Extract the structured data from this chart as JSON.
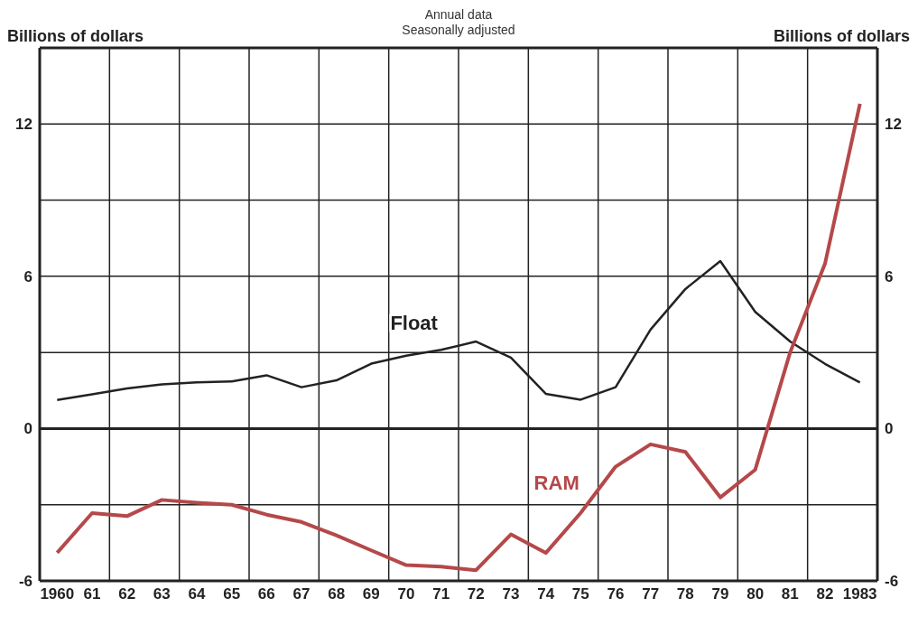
{
  "chart_data": {
    "type": "line",
    "annotations": [
      "Annual data",
      "Seasonally adjusted"
    ],
    "ylabel": "Billions of dollars",
    "y2label": "Billions of dollars",
    "x": [
      1960,
      1961,
      1962,
      1963,
      1964,
      1965,
      1966,
      1967,
      1968,
      1969,
      1970,
      1971,
      1972,
      1973,
      1974,
      1975,
      1976,
      1977,
      1978,
      1979,
      1980,
      1981,
      1982,
      1983
    ],
    "series": [
      {
        "name": "Float",
        "color": "#222222",
        "values": [
          1.13,
          1.35,
          1.58,
          1.74,
          1.82,
          1.86,
          2.1,
          1.63,
          1.9,
          2.56,
          2.87,
          3.1,
          3.43,
          2.8,
          1.37,
          1.14,
          1.63,
          3.9,
          5.5,
          6.6,
          4.6,
          3.43,
          2.55,
          1.82
        ]
      },
      {
        "name": "RAM",
        "color": "#b5484a",
        "values": [
          -4.89,
          -3.33,
          -3.45,
          -2.81,
          -2.92,
          -3.0,
          -3.39,
          -3.68,
          -4.21,
          -4.8,
          -5.38,
          -5.44,
          -5.58,
          -4.17,
          -4.9,
          -3.32,
          -1.5,
          -0.62,
          -0.92,
          -2.71,
          -1.62,
          3.0,
          6.5,
          12.8
        ]
      }
    ],
    "xlim": [
      1959.5,
      1983.5
    ],
    "xticks": [
      {
        "value": 1960,
        "label": "1960"
      },
      {
        "value": 1961,
        "label": "61"
      },
      {
        "value": 1961.5,
        "label": null
      },
      {
        "value": 1962,
        "label": "62"
      },
      {
        "value": 1963,
        "label": "63"
      },
      {
        "value": 1963.5,
        "label": null
      },
      {
        "value": 1964,
        "label": "64"
      },
      {
        "value": 1965,
        "label": "65"
      },
      {
        "value": 1965.5,
        "label": null
      },
      {
        "value": 1966,
        "label": "66"
      },
      {
        "value": 1967,
        "label": "67"
      },
      {
        "value": 1967.5,
        "label": null
      },
      {
        "value": 1968,
        "label": "68"
      },
      {
        "value": 1969,
        "label": "69"
      },
      {
        "value": 1969.5,
        "label": null
      },
      {
        "value": 1970,
        "label": "70"
      },
      {
        "value": 1971,
        "label": "71"
      },
      {
        "value": 1971.5,
        "label": null
      },
      {
        "value": 1972,
        "label": "72"
      },
      {
        "value": 1973,
        "label": "73"
      },
      {
        "value": 1973.5,
        "label": null
      },
      {
        "value": 1974,
        "label": "74"
      },
      {
        "value": 1975,
        "label": "75"
      },
      {
        "value": 1975.5,
        "label": null
      },
      {
        "value": 1976,
        "label": "76"
      },
      {
        "value": 1977,
        "label": "77"
      },
      {
        "value": 1977.5,
        "label": null
      },
      {
        "value": 1978,
        "label": "78"
      },
      {
        "value": 1979,
        "label": "79"
      },
      {
        "value": 1979.5,
        "label": null
      },
      {
        "value": 1980,
        "label": "80"
      },
      {
        "value": 1981,
        "label": "81"
      },
      {
        "value": 1981.5,
        "label": null
      },
      {
        "value": 1982,
        "label": "82"
      },
      {
        "value": 1983,
        "label": "1983"
      }
    ],
    "ylim": [
      -6,
      15
    ],
    "yticks": [
      -6,
      {
        "value": -3,
        "label": null
      },
      0,
      {
        "value": 3,
        "label": null
      },
      6,
      {
        "value": 9,
        "label": null
      },
      12
    ],
    "y2lim": [
      -6,
      15
    ],
    "y2ticks": [
      -6,
      {
        "value": -3,
        "label": null
      },
      0,
      {
        "value": 3,
        "label": null
      },
      6,
      {
        "value": 9,
        "label": null
      },
      12
    ],
    "grid": true,
    "legend": false,
    "marker": "none",
    "line_style": "solid"
  }
}
